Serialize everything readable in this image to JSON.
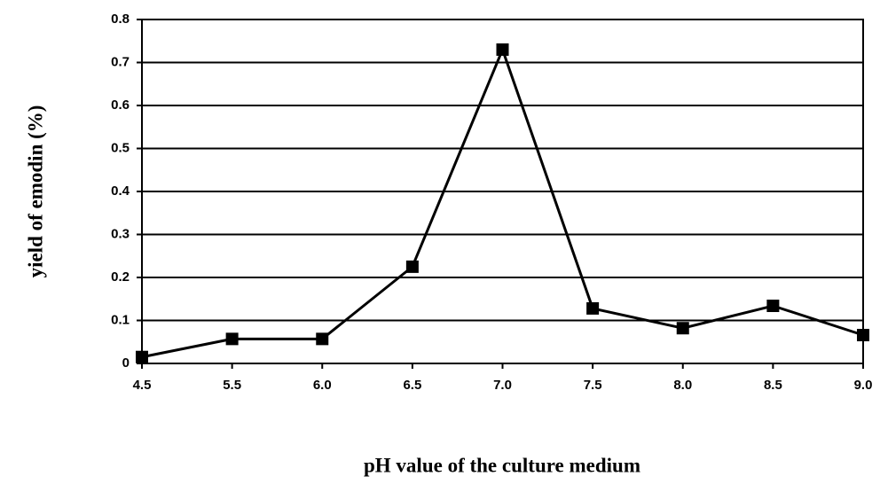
{
  "chart_data": {
    "type": "line",
    "x_label": "pH value of the culture medium",
    "y_label": "yield of emodin (%)",
    "categories": [
      "4.5",
      "5.5",
      "6.0",
      "6.5",
      "7.0",
      "7.5",
      "8.0",
      "8.5",
      "9.0"
    ],
    "values": [
      0.015,
      0.057,
      0.057,
      0.225,
      0.73,
      0.128,
      0.082,
      0.134,
      0.066
    ],
    "color": "#000000",
    "ylim": [
      0,
      0.8
    ],
    "yticks": [
      0,
      0.1,
      0.2,
      0.3,
      0.4,
      0.5,
      0.6,
      0.7,
      0.8
    ],
    "grid": true
  }
}
